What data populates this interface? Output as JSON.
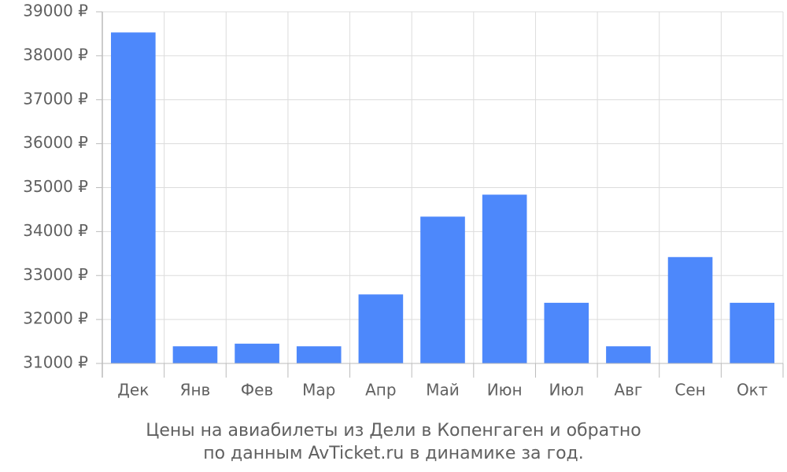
{
  "chart_data": {
    "type": "bar",
    "title": "Цены на авиабилеты из Дели в Копенгаген и обратно",
    "subtitle": "по данным AvTicket.ru в динамике за год.",
    "categories": [
      "Дек",
      "Янв",
      "Фев",
      "Мар",
      "Апр",
      "Май",
      "Июн",
      "Июл",
      "Авг",
      "Сен",
      "Окт"
    ],
    "values": [
      38530,
      31390,
      31450,
      31390,
      32570,
      34340,
      34840,
      32380,
      31390,
      33420,
      32380
    ],
    "color": "#4d88fb",
    "ylim": [
      31000,
      39000
    ],
    "yticks": [
      {
        "value": 31000,
        "label": "31000 ₽"
      },
      {
        "value": 32000,
        "label": "32000 ₽"
      },
      {
        "value": 33000,
        "label": "33000 ₽"
      },
      {
        "value": 34000,
        "label": "34000 ₽"
      },
      {
        "value": 35000,
        "label": "35000 ₽"
      },
      {
        "value": 36000,
        "label": "36000 ₽"
      },
      {
        "value": 37000,
        "label": "37000 ₽"
      },
      {
        "value": 38000,
        "label": "38000 ₽"
      },
      {
        "value": 39000,
        "label": "39000 ₽"
      }
    ],
    "grid": true
  }
}
